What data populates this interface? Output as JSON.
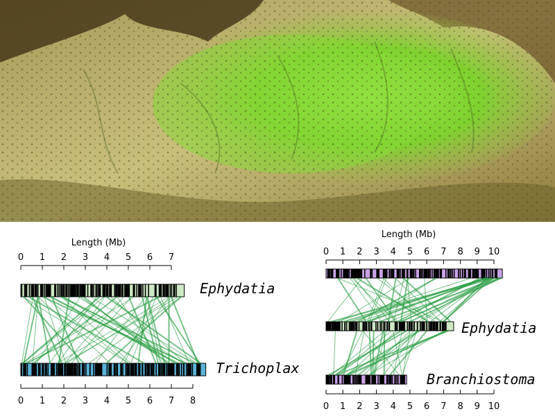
{
  "photo": {
    "subject": "sponge",
    "colors": {
      "background_dark": "#3a2a12",
      "rock": "#5a4422",
      "sponge_tan": "#c8bf7a",
      "sponge_green": "#7ed12e",
      "sponge_bright": "#93e03a"
    }
  },
  "panels": [
    {
      "axis_title": "Length (Mb)",
      "top_axis": {
        "ticks": [
          0,
          1,
          2,
          3,
          4,
          5,
          6,
          7
        ]
      },
      "bottom_axis": {
        "ticks": [
          0,
          1,
          2,
          3,
          4,
          5,
          6,
          7,
          8
        ]
      },
      "chromosomes": [
        {
          "name": "Ephydatia",
          "length": 7.6,
          "fill": "#cfe8c4"
        },
        {
          "name": "Trichoplax",
          "length": 8.6,
          "fill": "#5bb3d8"
        }
      ]
    },
    {
      "axis_title": "Length (Mb)",
      "top_axis": {
        "ticks": [
          0,
          1,
          2,
          3,
          4,
          5,
          6,
          7,
          8,
          9,
          10
        ]
      },
      "bottom_axis": {
        "ticks": [
          0,
          1,
          2,
          3,
          4,
          5,
          6,
          7,
          8,
          9,
          10
        ]
      },
      "chromosomes": [
        {
          "name": "",
          "length": 10.5,
          "fill": "#c9a4e8"
        },
        {
          "name": "Ephydatia",
          "length": 7.6,
          "fill": "#cfe8c4"
        },
        {
          "name": "Branchiostoma",
          "length": 4.8,
          "fill": "#c9a4e8"
        }
      ]
    }
  ],
  "colors": {
    "link": "#1f9a3a",
    "marker": "#000000",
    "outline": "#000000"
  }
}
